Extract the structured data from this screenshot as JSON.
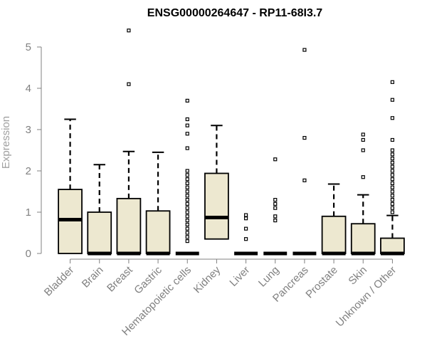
{
  "chart_data": {
    "type": "box",
    "title": "ENSG00000264647 - RP11-68I3.7",
    "xlabel": "",
    "ylabel": "Expression",
    "ylim": [
      0,
      5.5
    ],
    "yticks": [
      "0",
      "1",
      "2",
      "3",
      "4",
      "5"
    ],
    "colors": {
      "box_fill": "#ede8d0",
      "stroke": "#000000",
      "axis_text": "#808080"
    },
    "categories": [
      "Bladder",
      "Brain",
      "Breast",
      "Gastric",
      "Hematopoietic cells",
      "Kidney",
      "Liver",
      "Lung",
      "Pancreas",
      "Prostate",
      "Skin",
      "Unknown / Other"
    ],
    "boxes": [
      {
        "min": 0,
        "q1": 0,
        "median": 0.82,
        "q3": 1.55,
        "max": 3.25,
        "outliers": []
      },
      {
        "min": 0,
        "q1": 0,
        "median": 0,
        "q3": 1.0,
        "max": 2.15,
        "outliers": []
      },
      {
        "min": 0,
        "q1": 0,
        "median": 0,
        "q3": 1.33,
        "max": 2.47,
        "outliers": [
          4.1,
          5.4
        ]
      },
      {
        "min": 0,
        "q1": 0,
        "median": 0,
        "q3": 1.03,
        "max": 2.45,
        "outliers": []
      },
      {
        "min": 0,
        "q1": 0,
        "median": 0,
        "q3": 0,
        "max": 0,
        "outliers": [
          0.3,
          0.4,
          0.5,
          0.6,
          0.7,
          0.8,
          0.9,
          1.0,
          1.1,
          1.2,
          1.3,
          1.4,
          1.5,
          1.6,
          1.7,
          1.8,
          1.9,
          2.0,
          2.55,
          2.9,
          3.1,
          3.25,
          3.7
        ]
      },
      {
        "min": 0,
        "q1": 0.35,
        "median": 0.87,
        "q3": 1.94,
        "max": 3.1,
        "outliers": []
      },
      {
        "min": 0,
        "q1": 0,
        "median": 0,
        "q3": 0,
        "max": 0,
        "outliers": [
          0.35,
          0.6,
          0.85,
          0.93
        ]
      },
      {
        "min": 0,
        "q1": 0,
        "median": 0,
        "q3": 0,
        "max": 0,
        "outliers": [
          0.8,
          0.9,
          1.1,
          1.2,
          1.3,
          2.28
        ]
      },
      {
        "min": 0,
        "q1": 0,
        "median": 0,
        "q3": 0,
        "max": 0,
        "outliers": [
          1.77,
          2.8,
          4.93
        ]
      },
      {
        "min": 0,
        "q1": 0,
        "median": 0,
        "q3": 0.9,
        "max": 1.68,
        "outliers": []
      },
      {
        "min": 0,
        "q1": 0,
        "median": 0,
        "q3": 0.72,
        "max": 1.42,
        "outliers": [
          1.85,
          2.5,
          2.75,
          2.88
        ]
      },
      {
        "min": 0,
        "q1": 0,
        "median": 0,
        "q3": 0.37,
        "max": 0.92,
        "outliers": [
          1.0,
          1.1,
          1.2,
          1.3,
          1.4,
          1.5,
          1.6,
          1.7,
          1.8,
          1.9,
          2.0,
          2.1,
          2.2,
          2.3,
          2.4,
          2.5,
          2.75,
          3.28,
          3.72,
          4.15
        ]
      }
    ]
  }
}
